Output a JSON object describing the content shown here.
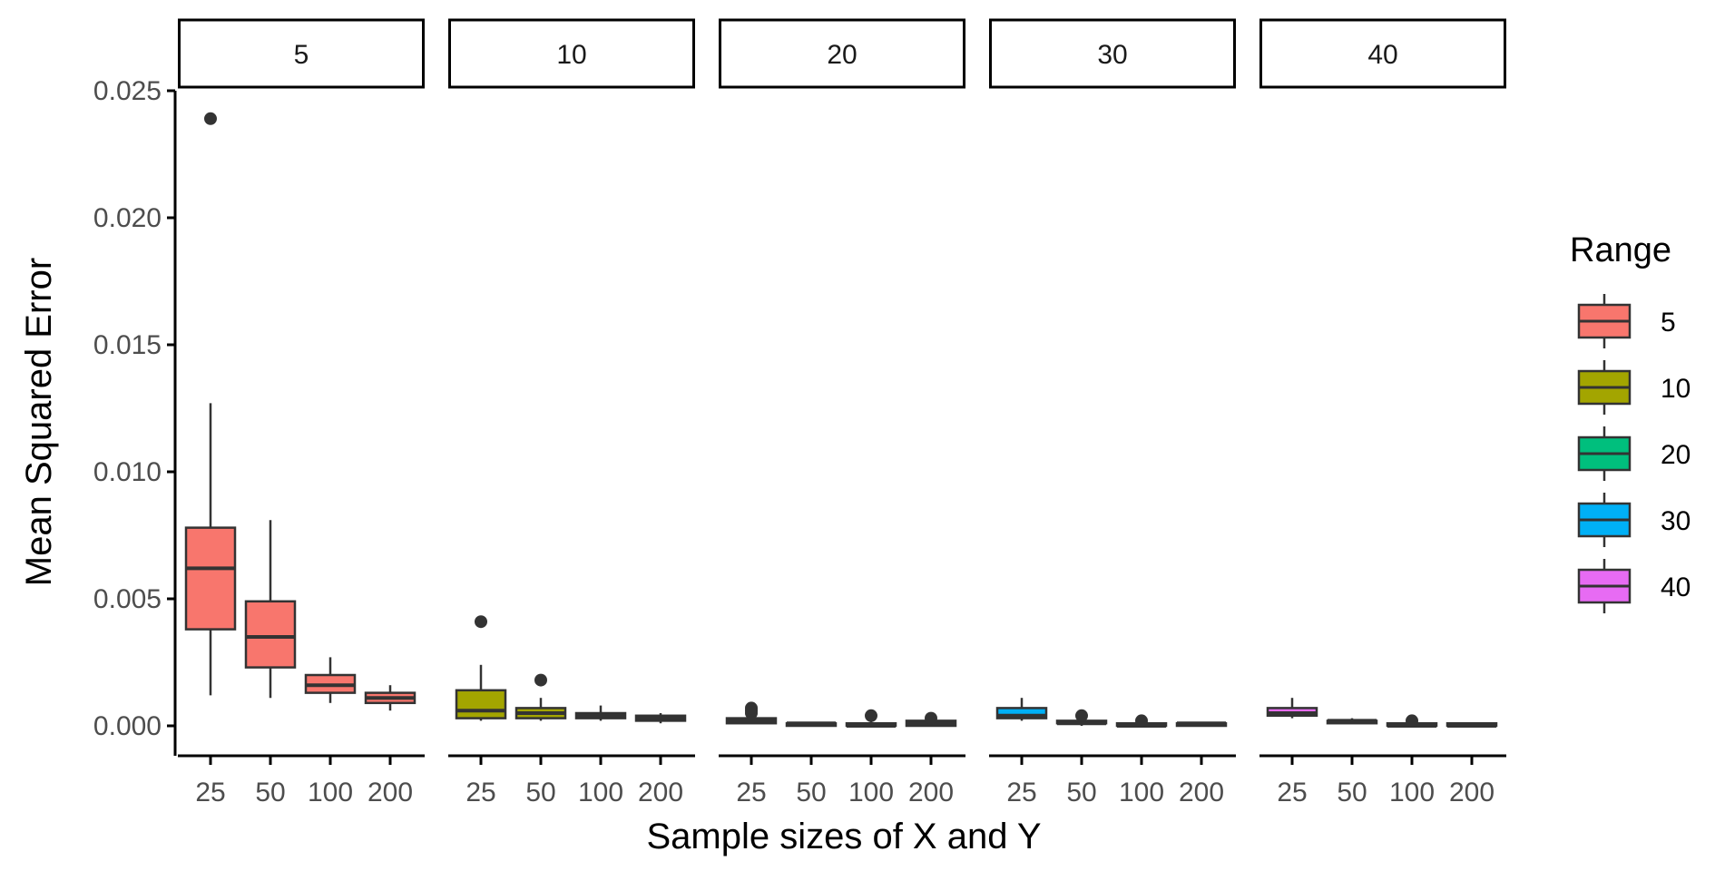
{
  "colors": {
    "5": "#F8766D",
    "10": "#A3A500",
    "20": "#00BF7D",
    "30": "#00B0F6",
    "40": "#E76BF3",
    "outline": "#333333",
    "axis": "#000000"
  },
  "chart_data": {
    "type": "boxplot",
    "xlabel": "Sample sizes of X and Y",
    "ylabel": "Mean Squared Error",
    "ylim": [
      0,
      0.025
    ],
    "yticks": [
      0.0,
      0.005,
      0.01,
      0.015,
      0.02,
      0.025
    ],
    "ytick_labels": [
      "0.000",
      "0.005",
      "0.010",
      "0.015",
      "0.020",
      "0.025"
    ],
    "categories": [
      "25",
      "50",
      "100",
      "200"
    ],
    "grid": false,
    "legend": {
      "title": "Range",
      "position": "right",
      "entries": [
        "5",
        "10",
        "20",
        "30",
        "40"
      ]
    },
    "panels": [
      {
        "label": "5",
        "boxes": [
          {
            "x": "25",
            "min": 0.0012,
            "q1": 0.0038,
            "median": 0.0062,
            "q3": 0.0078,
            "max": 0.0127,
            "outliers": [
              0.0239
            ]
          },
          {
            "x": "50",
            "min": 0.0011,
            "q1": 0.0023,
            "median": 0.0035,
            "q3": 0.0049,
            "max": 0.0081,
            "outliers": []
          },
          {
            "x": "100",
            "min": 0.0009,
            "q1": 0.0013,
            "median": 0.0016,
            "q3": 0.002,
            "max": 0.0027,
            "outliers": []
          },
          {
            "x": "200",
            "min": 0.0006,
            "q1": 0.0009,
            "median": 0.0011,
            "q3": 0.0013,
            "max": 0.0016,
            "outliers": []
          }
        ]
      },
      {
        "label": "10",
        "boxes": [
          {
            "x": "25",
            "min": 0.0002,
            "q1": 0.0003,
            "median": 0.0006,
            "q3": 0.0014,
            "max": 0.0024,
            "outliers": [
              0.0041
            ]
          },
          {
            "x": "50",
            "min": 0.0002,
            "q1": 0.0003,
            "median": 0.0005,
            "q3": 0.0007,
            "max": 0.0011,
            "outliers": [
              0.0018
            ]
          },
          {
            "x": "100",
            "min": 0.0002,
            "q1": 0.0003,
            "median": 0.0004,
            "q3": 0.0005,
            "max": 0.0008,
            "outliers": []
          },
          {
            "x": "200",
            "min": 0.0001,
            "q1": 0.0002,
            "median": 0.0003,
            "q3": 0.0004,
            "max": 0.0005,
            "outliers": []
          }
        ]
      },
      {
        "label": "20",
        "boxes": [
          {
            "x": "25",
            "min": 0.0001,
            "q1": 0.0001,
            "median": 0.0002,
            "q3": 0.0003,
            "max": 0.0004,
            "outliers": [
              0.0005,
              0.0006,
              0.0007
            ]
          },
          {
            "x": "50",
            "min": 0.0,
            "q1": 0.0,
            "median": 0.0001,
            "q3": 0.0001,
            "max": 0.0001,
            "outliers": []
          },
          {
            "x": "100",
            "min": 0.0,
            "q1": 0.0,
            "median": 0.0,
            "q3": 0.0001,
            "max": 0.0002,
            "outliers": [
              0.0004
            ]
          },
          {
            "x": "200",
            "min": 0.0,
            "q1": 0.0,
            "median": 0.0001,
            "q3": 0.0002,
            "max": 0.0002,
            "outliers": [
              0.0003
            ]
          }
        ]
      },
      {
        "label": "30",
        "boxes": [
          {
            "x": "25",
            "min": 0.0002,
            "q1": 0.0003,
            "median": 0.0004,
            "q3": 0.0007,
            "max": 0.0011,
            "outliers": []
          },
          {
            "x": "50",
            "min": 0.0,
            "q1": 0.0001,
            "median": 0.0001,
            "q3": 0.0002,
            "max": 0.0003,
            "outliers": [
              0.0004
            ]
          },
          {
            "x": "100",
            "min": 0.0,
            "q1": 0.0,
            "median": 0.0,
            "q3": 0.0001,
            "max": 0.0001,
            "outliers": [
              0.0002
            ]
          },
          {
            "x": "200",
            "min": 0.0,
            "q1": 0.0,
            "median": 0.0001,
            "q3": 0.0001,
            "max": 0.0001,
            "outliers": []
          }
        ]
      },
      {
        "label": "40",
        "boxes": [
          {
            "x": "25",
            "min": 0.0003,
            "q1": 0.0004,
            "median": 0.0005,
            "q3": 0.0007,
            "max": 0.0011,
            "outliers": []
          },
          {
            "x": "50",
            "min": 0.0001,
            "q1": 0.0001,
            "median": 0.0002,
            "q3": 0.0002,
            "max": 0.0003,
            "outliers": []
          },
          {
            "x": "100",
            "min": 0.0,
            "q1": 0.0,
            "median": 0.0,
            "q3": 0.0001,
            "max": 0.0001,
            "outliers": [
              0.0002
            ]
          },
          {
            "x": "200",
            "min": 0.0,
            "q1": 0.0,
            "median": 0.0,
            "q3": 0.0001,
            "max": 0.0001,
            "outliers": []
          }
        ]
      }
    ]
  }
}
